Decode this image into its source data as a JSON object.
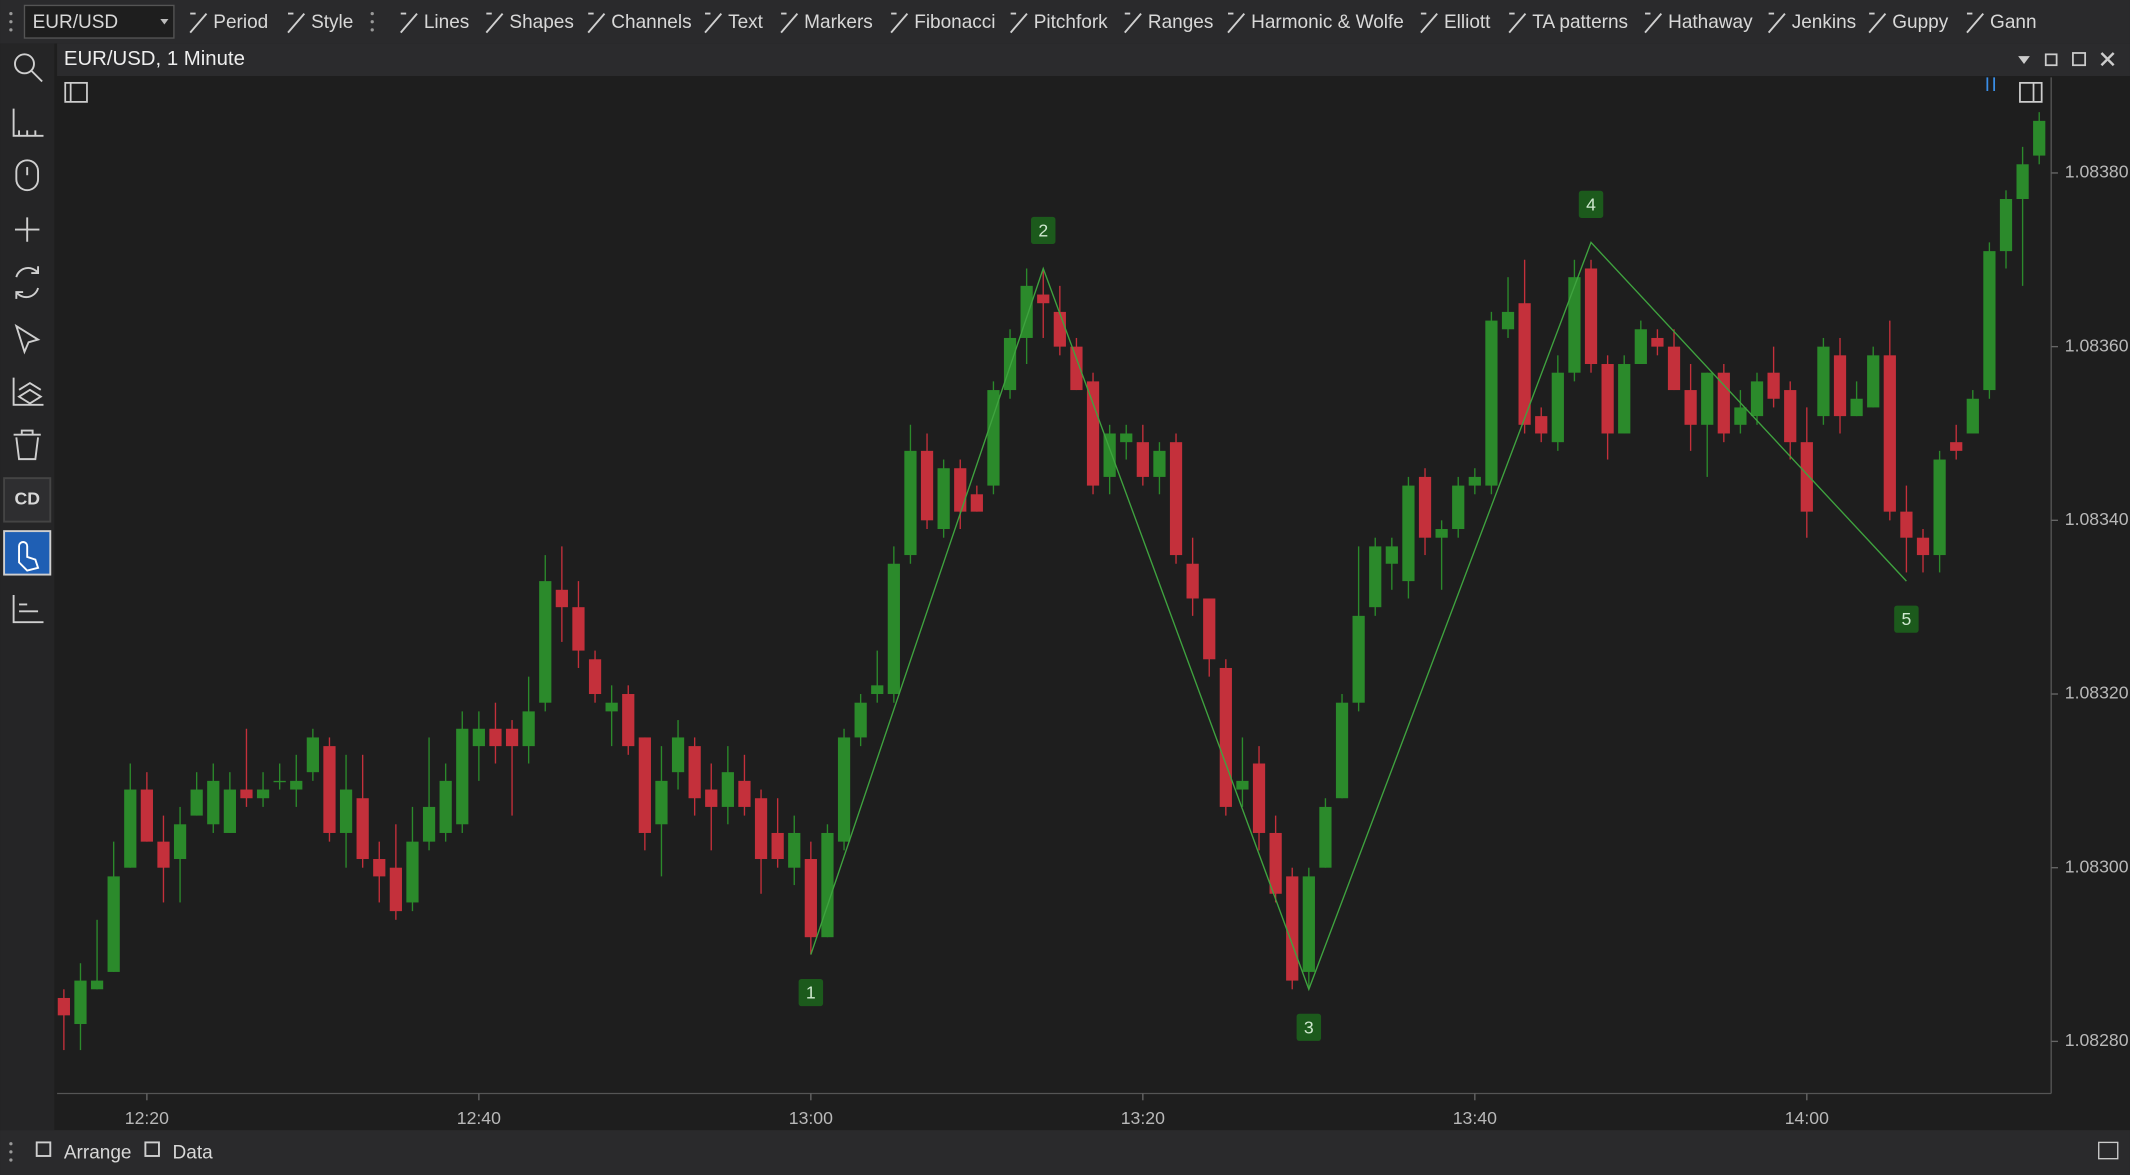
{
  "toolbar": {
    "symbol": "EUR/USD",
    "items": [
      "Period",
      "Style",
      "Lines",
      "Shapes",
      "Channels",
      "Text",
      "Markers",
      "Fibonacci",
      "Pitchfork",
      "Ranges",
      "Harmonic & Wolfe",
      "Elliott",
      "TA patterns",
      "Hathaway",
      "Jenkins",
      "Guppy",
      "Gann"
    ]
  },
  "window_title": "EUR/USD, 1 Minute",
  "sidebar": {
    "badge": "CD"
  },
  "statusbar": {
    "items": [
      "Arrange",
      "Data"
    ]
  },
  "chart_data": {
    "type": "candlestick",
    "categories": [
      null,
      null,
      null,
      null,
      null,
      "12:20",
      null,
      null,
      null,
      null,
      null,
      null,
      null,
      null,
      null,
      null,
      null,
      null,
      null,
      null,
      null,
      null,
      null,
      null,
      null,
      "12:40",
      null,
      null,
      null,
      null,
      null,
      null,
      null,
      null,
      null,
      null,
      null,
      null,
      null,
      null,
      null,
      null,
      null,
      null,
      null,
      "13:00",
      null,
      null,
      null,
      null,
      null,
      null,
      null,
      null,
      null,
      null,
      null,
      null,
      null,
      null,
      null,
      null,
      null,
      null,
      null,
      "13:20",
      null,
      null,
      null,
      null,
      null,
      null,
      null,
      null,
      null,
      null,
      null,
      null,
      null,
      null,
      null,
      null,
      null,
      null,
      null,
      "13:40",
      null,
      null,
      null,
      null,
      null,
      null,
      null,
      null,
      null,
      null,
      null,
      null,
      null,
      null,
      null,
      null,
      null,
      null,
      null,
      "14:00",
      null,
      null,
      null,
      null,
      null,
      null,
      null,
      null,
      null,
      null,
      null,
      null,
      null,
      null
    ],
    "open": [
      1.08285,
      1.08282,
      1.08286,
      1.08288,
      1.083,
      1.08309,
      1.08303,
      1.08301,
      1.08306,
      1.08305,
      1.08304,
      1.08309,
      1.08308,
      1.0831,
      1.08309,
      1.08311,
      1.08314,
      1.08304,
      1.08308,
      1.08301,
      1.083,
      1.08296,
      1.08303,
      1.08304,
      1.08305,
      1.08314,
      1.08316,
      1.08316,
      1.08314,
      1.08319,
      1.08332,
      1.0833,
      1.08324,
      1.08318,
      1.0832,
      1.08315,
      1.08305,
      1.08311,
      1.08314,
      1.08309,
      1.08307,
      1.0831,
      1.08308,
      1.08304,
      1.083,
      1.08301,
      1.08292,
      1.08303,
      1.08315,
      1.0832,
      1.0832,
      1.08336,
      1.08348,
      1.08339,
      1.08346,
      1.08343,
      1.08344,
      1.08355,
      1.08361,
      1.08366,
      1.08364,
      1.0836,
      1.08356,
      1.08345,
      1.08349,
      1.08349,
      1.08345,
      1.08349,
      1.08335,
      1.08331,
      1.08323,
      1.08309,
      1.08312,
      1.08304,
      1.08299,
      1.08288,
      1.083,
      1.08308,
      1.08319,
      1.0833,
      1.08335,
      1.08333,
      1.08345,
      1.08338,
      1.08339,
      1.08344,
      1.08344,
      1.08362,
      1.08365,
      1.08352,
      1.08349,
      1.08357,
      1.08369,
      1.08358,
      1.0835,
      1.08358,
      1.08361,
      1.0836,
      1.08355,
      1.08351,
      1.08357,
      1.08351,
      1.08352,
      1.08357,
      1.08355,
      1.08349,
      1.08352,
      1.08359,
      1.08352,
      1.08353,
      1.08359,
      1.08341,
      1.08338,
      1.08336,
      1.08349,
      1.0835,
      1.08355,
      1.08371,
      1.08377,
      1.08382
    ],
    "high": [
      1.08286,
      1.08289,
      1.08294,
      1.08303,
      1.08312,
      1.08311,
      1.08306,
      1.08307,
      1.08311,
      1.08312,
      1.08311,
      1.08316,
      1.08311,
      1.08312,
      1.08313,
      1.08316,
      1.08315,
      1.08313,
      1.08313,
      1.08303,
      1.08305,
      1.08307,
      1.08315,
      1.08312,
      1.08318,
      1.08318,
      1.08319,
      1.08317,
      1.08322,
      1.08336,
      1.08337,
      1.08333,
      1.08325,
      1.08321,
      1.08321,
      1.08315,
      1.08314,
      1.08317,
      1.08315,
      1.08312,
      1.08314,
      1.08313,
      1.08309,
      1.08308,
      1.08306,
      1.08303,
      1.08305,
      1.08316,
      1.0832,
      1.08325,
      1.08337,
      1.08351,
      1.0835,
      1.08347,
      1.08347,
      1.08344,
      1.08356,
      1.08362,
      1.08369,
      1.08369,
      1.08367,
      1.08361,
      1.08357,
      1.08351,
      1.08351,
      1.08351,
      1.08349,
      1.0835,
      1.08338,
      1.08331,
      1.08324,
      1.08315,
      1.08314,
      1.08306,
      1.083,
      1.083,
      1.08308,
      1.0832,
      1.08337,
      1.08338,
      1.08338,
      1.08345,
      1.08346,
      1.0834,
      1.08345,
      1.08346,
      1.08364,
      1.08368,
      1.0837,
      1.08353,
      1.08359,
      1.0837,
      1.0837,
      1.08359,
      1.08359,
      1.08363,
      1.08362,
      1.08362,
      1.08358,
      1.08357,
      1.08358,
      1.08355,
      1.08357,
      1.0836,
      1.08356,
      1.08353,
      1.08361,
      1.08361,
      1.08356,
      1.0836,
      1.08363,
      1.08344,
      1.08339,
      1.08348,
      1.08351,
      1.08355,
      1.08372,
      1.08378,
      1.08383,
      1.08387
    ],
    "low": [
      1.08279,
      1.08279,
      1.08286,
      1.08288,
      1.083,
      1.08303,
      1.08296,
      1.08296,
      1.08306,
      1.08304,
      1.08304,
      1.08307,
      1.08307,
      1.08309,
      1.08307,
      1.0831,
      1.08303,
      1.083,
      1.083,
      1.08296,
      1.08294,
      1.08295,
      1.08302,
      1.08303,
      1.08304,
      1.0831,
      1.08312,
      1.08306,
      1.08312,
      1.08318,
      1.08326,
      1.08323,
      1.08319,
      1.08314,
      1.08313,
      1.08302,
      1.08299,
      1.08309,
      1.08306,
      1.08302,
      1.08305,
      1.08306,
      1.08297,
      1.083,
      1.08298,
      1.0829,
      1.08292,
      1.08302,
      1.08314,
      1.08319,
      1.08319,
      1.08335,
      1.08339,
      1.08338,
      1.08339,
      1.08341,
      1.08343,
      1.08354,
      1.08358,
      1.08361,
      1.08359,
      1.08355,
      1.08343,
      1.08343,
      1.08347,
      1.08344,
      1.08343,
      1.08335,
      1.08329,
      1.08322,
      1.08306,
      1.08307,
      1.08302,
      1.08296,
      1.08286,
      1.08286,
      1.083,
      1.08308,
      1.08318,
      1.08329,
      1.08332,
      1.08331,
      1.08336,
      1.08332,
      1.08338,
      1.08343,
      1.08343,
      1.08361,
      1.0835,
      1.08349,
      1.08348,
      1.08356,
      1.08357,
      1.08347,
      1.0835,
      1.08358,
      1.08359,
      1.08355,
      1.08348,
      1.08345,
      1.08349,
      1.0835,
      1.08351,
      1.08353,
      1.08347,
      1.08338,
      1.08351,
      1.0835,
      1.08352,
      1.08353,
      1.0834,
      1.08334,
      1.08334,
      1.08334,
      1.08347,
      1.0835,
      1.08354,
      1.08369,
      1.08367,
      1.08381
    ],
    "close": [
      1.08283,
      1.08287,
      1.08287,
      1.08299,
      1.08309,
      1.08303,
      1.083,
      1.08305,
      1.08309,
      1.0831,
      1.08309,
      1.08308,
      1.08309,
      1.0831,
      1.0831,
      1.08315,
      1.08304,
      1.08309,
      1.08301,
      1.08299,
      1.08295,
      1.08303,
      1.08307,
      1.0831,
      1.08316,
      1.08316,
      1.08314,
      1.08314,
      1.08318,
      1.08333,
      1.0833,
      1.08325,
      1.0832,
      1.08319,
      1.08314,
      1.08304,
      1.0831,
      1.08315,
      1.08308,
      1.08307,
      1.08311,
      1.08307,
      1.08301,
      1.08301,
      1.08304,
      1.08292,
      1.08304,
      1.08315,
      1.08319,
      1.08321,
      1.08335,
      1.08348,
      1.0834,
      1.08346,
      1.08341,
      1.08341,
      1.08355,
      1.08361,
      1.08367,
      1.08365,
      1.0836,
      1.08355,
      1.08344,
      1.0835,
      1.0835,
      1.08345,
      1.08348,
      1.08336,
      1.08331,
      1.08324,
      1.08307,
      1.0831,
      1.08304,
      1.08297,
      1.08287,
      1.08299,
      1.08307,
      1.08319,
      1.08329,
      1.08337,
      1.08337,
      1.08344,
      1.08338,
      1.08339,
      1.08344,
      1.08345,
      1.08363,
      1.08364,
      1.08351,
      1.0835,
      1.08357,
      1.08368,
      1.08358,
      1.0835,
      1.08358,
      1.08362,
      1.0836,
      1.08355,
      1.08351,
      1.08357,
      1.0835,
      1.08353,
      1.08356,
      1.08354,
      1.08349,
      1.08341,
      1.0836,
      1.08352,
      1.08354,
      1.08359,
      1.08341,
      1.08338,
      1.08336,
      1.08347,
      1.08348,
      1.08354,
      1.08371,
      1.08377,
      1.08381,
      1.08386
    ],
    "up_color": "#2b8a2b",
    "down_color": "#c4303b",
    "ylim": [
      1.08274,
      1.08391
    ],
    "yticks": [
      {
        "value": 1.0828,
        "label": "1.08280"
      },
      {
        "value": 1.083,
        "label": "1.08300"
      },
      {
        "value": 1.0832,
        "label": "1.08320"
      },
      {
        "value": 1.0834,
        "label": "1.08340"
      },
      {
        "value": 1.0836,
        "label": "1.08360"
      },
      {
        "value": 1.0838,
        "label": "1.08380"
      }
    ],
    "elliott_wave": {
      "color": "#3fa33f",
      "points": [
        {
          "label": "1",
          "index": 45,
          "value": 1.0829
        },
        {
          "label": "2",
          "index": 59,
          "value": 1.08369
        },
        {
          "label": "3",
          "index": 75,
          "value": 1.08286
        },
        {
          "label": "4",
          "index": 92,
          "value": 1.08372
        },
        {
          "label": "5",
          "index": 111,
          "value": 1.08333
        }
      ]
    }
  }
}
